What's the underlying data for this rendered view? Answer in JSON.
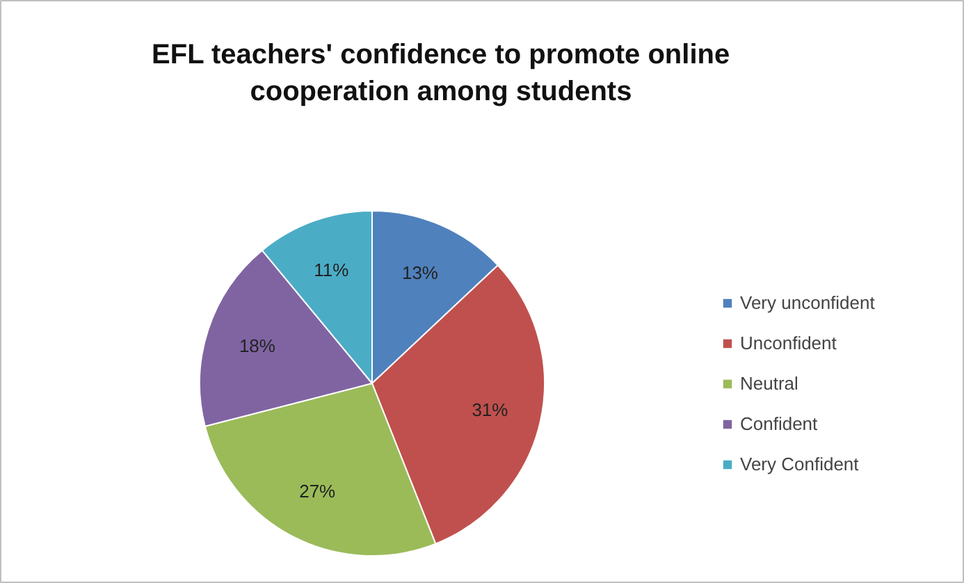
{
  "chart_data": {
    "type": "pie",
    "title": "EFL teachers' confidence to promote online cooperation among students",
    "categories": [
      "Very unconfident",
      "Unconfident",
      "Neutral",
      "Confident",
      "Very Confident"
    ],
    "values": [
      13,
      31,
      27,
      18,
      11
    ],
    "colors": [
      "#4f81bd",
      "#c0504d",
      "#9bbb59",
      "#8064a2",
      "#4bacc6"
    ],
    "value_labels": [
      "13%",
      "31%",
      "27%",
      "18%",
      "11%"
    ],
    "legend": "right"
  }
}
